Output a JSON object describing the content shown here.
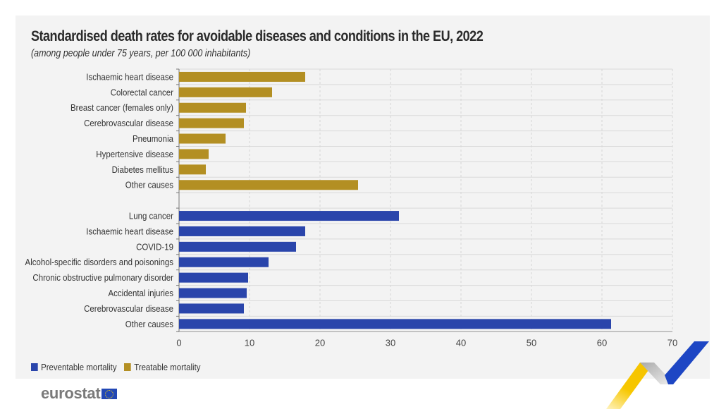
{
  "chart_data": {
    "type": "bar",
    "orientation": "horizontal",
    "title": "Standardised death rates for avoidable diseases and conditions in the EU, 2022",
    "subtitle": "(among people under 75 years, per 100 000 inhabitants)",
    "xlabel": "",
    "ylabel": "",
    "xlim": [
      0,
      70
    ],
    "xticks": [
      0,
      10,
      20,
      30,
      40,
      50,
      60,
      70
    ],
    "grid": true,
    "legend_position": "bottom-left",
    "series": [
      {
        "name": "Treatable mortality",
        "color": "#b38f23",
        "categories": [
          "Ischaemic heart disease",
          "Colorectal cancer",
          "Breast cancer (females only)",
          "Cerebrovascular disease",
          "Pneumonia",
          "Hypertensive disease",
          "Diabetes mellitus",
          "Other causes"
        ],
        "values": [
          17.9,
          13.2,
          9.5,
          9.2,
          6.6,
          4.2,
          3.8,
          25.4
        ]
      },
      {
        "name": "Preventable mortality",
        "color": "#2a45ab",
        "categories": [
          "Lung cancer",
          "Ischaemic heart disease",
          "COVID-19",
          "Alcohol-specific disorders and poisonings",
          "Chronic obstructive pulmonary disorder",
          "Accidental injuries",
          "Cerebrovascular disease",
          "Other causes"
        ],
        "values": [
          31.2,
          17.9,
          16.6,
          12.7,
          9.8,
          9.6,
          9.2,
          61.3
        ]
      }
    ],
    "legend": [
      {
        "label": "Preventable mortality",
        "color": "#2a45ab"
      },
      {
        "label": "Treatable mortality",
        "color": "#b38f23"
      }
    ]
  },
  "branding": {
    "logo_text": "eurostat",
    "flag_icon": "eu-flag-icon"
  }
}
